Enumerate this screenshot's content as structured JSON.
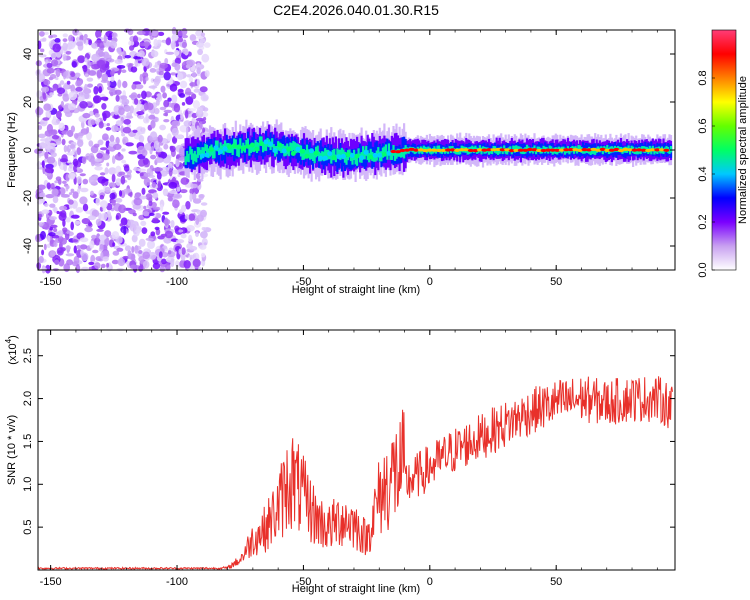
{
  "title": "C2E4.2026.040.01.30.R15",
  "chart_data": [
    {
      "type": "heatmap",
      "xlabel": "Height of straight line (km)",
      "ylabel": "Frequency (Hz)",
      "xlim": [
        -155,
        97
      ],
      "ylim": [
        -50,
        50
      ],
      "xticks": [
        -150,
        -100,
        -50,
        0,
        50
      ],
      "yticks": [
        -40,
        -20,
        0,
        20,
        40
      ],
      "colorbar": {
        "label": "Normalized spectral amplitude",
        "range": [
          0.0,
          1.0
        ],
        "ticks": [
          "0.0",
          "0.2",
          "0.4",
          "0.6",
          "0.8"
        ],
        "colors": [
          "#ffffff",
          "#c8a0f0",
          "#7a00ff",
          "#0000ff",
          "#00c8ff",
          "#00ff64",
          "#64ff00",
          "#ffff00",
          "#ff8000",
          "#ff0000",
          "#ff3c78"
        ]
      },
      "regions": [
        {
          "x_range": [
            -155,
            -88
          ],
          "freq_range": [
            -50,
            50
          ],
          "amplitude_range": [
            0.0,
            0.2
          ]
        },
        {
          "x_range": [
            -98,
            95
          ],
          "freq_center": 0,
          "amplitude_range": [
            0.2,
            1.0
          ]
        }
      ],
      "ridge_center": {
        "x": [
          -95,
          -85,
          -75,
          -65,
          -55,
          -45,
          -35,
          -25,
          -20,
          -15,
          -10,
          0,
          10,
          20,
          30,
          40,
          50,
          60,
          70,
          80,
          95
        ],
        "freq": [
          -2,
          0,
          1,
          2,
          0,
          -2,
          -3,
          -2,
          -1,
          -1,
          0,
          0,
          0,
          0,
          0,
          0,
          0,
          0,
          0,
          0,
          0
        ]
      }
    },
    {
      "type": "line",
      "xlabel": "Height of straight line (km)",
      "ylabel": "SNR (10 * v/v)",
      "yscale_label": "(x10",
      "yscale_exp": "4",
      "yscale_close": ")",
      "xlim": [
        -155,
        97
      ],
      "ylim": [
        0,
        2.8
      ],
      "xticks": [
        -150,
        -100,
        -50,
        0,
        50
      ],
      "yticks": [
        0.5,
        1.0,
        1.5,
        2.0,
        2.5
      ],
      "color": "#e8302a",
      "x": [
        -155,
        -80,
        -75,
        -70,
        -65,
        -60,
        -55,
        -50,
        -45,
        -40,
        -35,
        -30,
        -25,
        -20,
        -15,
        -10,
        -5,
        0,
        5,
        10,
        20,
        30,
        40,
        50,
        60,
        70,
        80,
        90,
        96
      ],
      "y": [
        0.02,
        0.02,
        0.1,
        0.3,
        0.4,
        0.6,
        0.9,
        0.7,
        0.5,
        0.4,
        0.5,
        0.45,
        0.3,
        0.7,
        0.9,
        1.0,
        1.1,
        1.2,
        1.3,
        1.4,
        1.55,
        1.7,
        1.85,
        1.95,
        2.0,
        1.95,
        2.0,
        2.0,
        1.9
      ]
    }
  ]
}
